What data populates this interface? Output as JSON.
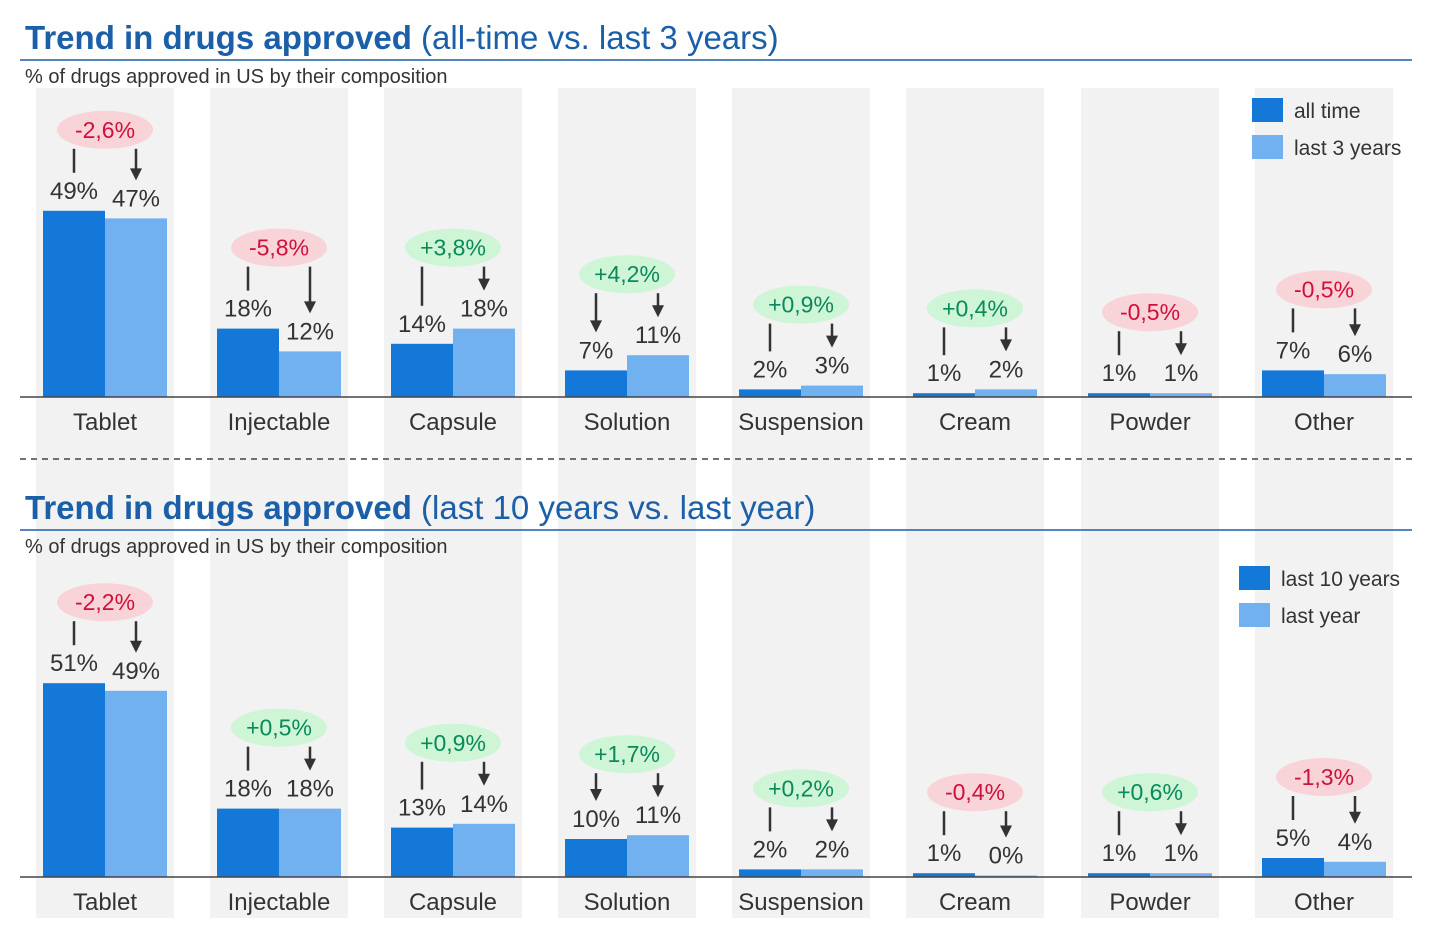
{
  "colors": {
    "primary": "#1478d8",
    "secondary": "#72b1f0",
    "band": "#f2f2f2",
    "title": "#1a5fa8",
    "negative_text": "#d0103a",
    "negative_bg": "#f8d3d8",
    "positive_text": "#0a8a5a",
    "positive_bg": "#cdf5d6",
    "text": "#333333"
  },
  "chart_data": [
    {
      "type": "bar",
      "title_bold": "Trend in drugs approved",
      "title_rest": " (all-time vs. last 3 years)",
      "subtitle": "% of drugs approved in US by their composition",
      "categories": [
        "Tablet",
        "Injectable",
        "Capsule",
        "Solution",
        "Suspension",
        "Cream",
        "Powder",
        "Other"
      ],
      "series": [
        {
          "name": "all time",
          "values": [
            49,
            18,
            14,
            7,
            2,
            1,
            1,
            7
          ]
        },
        {
          "name": "last 3 years",
          "values": [
            47,
            12,
            18,
            11,
            3,
            2,
            1,
            6
          ]
        }
      ],
      "value_labels": [
        [
          "49%",
          "18%",
          "14%",
          "7%",
          "2%",
          "1%",
          "1%",
          "7%"
        ],
        [
          "47%",
          "12%",
          "18%",
          "11%",
          "3%",
          "2%",
          "1%",
          "6%"
        ]
      ],
      "changes": [
        "-2,6%",
        "-5,8%",
        "+3,8%",
        "+4,2%",
        "+0,9%",
        "+0,4%",
        "-0,5%",
        "-0,5%"
      ],
      "legend_position": "top-right",
      "grid": false
    },
    {
      "type": "bar",
      "title_bold": "Trend in drugs approved",
      "title_rest": " (last 10 years vs. last year)",
      "subtitle": "% of drugs approved in US by their composition",
      "categories": [
        "Tablet",
        "Injectable",
        "Capsule",
        "Solution",
        "Suspension",
        "Cream",
        "Powder",
        "Other"
      ],
      "series": [
        {
          "name": "last 10 years",
          "values": [
            51,
            18,
            13,
            10,
            2,
            1,
            1,
            5
          ]
        },
        {
          "name": "last year",
          "values": [
            49,
            18,
            14,
            11,
            2,
            0,
            1,
            4
          ]
        }
      ],
      "value_labels": [
        [
          "51%",
          "18%",
          "13%",
          "10%",
          "2%",
          "1%",
          "1%",
          "5%"
        ],
        [
          "49%",
          "18%",
          "14%",
          "11%",
          "2%",
          "0%",
          "1%",
          "4%"
        ]
      ],
      "changes": [
        "-2,2%",
        "+0,5%",
        "+0,9%",
        "+1,7%",
        "+0,2%",
        "-0,4%",
        "+0,6%",
        "-1,3%"
      ],
      "legend_position": "top-right",
      "grid": false
    }
  ]
}
